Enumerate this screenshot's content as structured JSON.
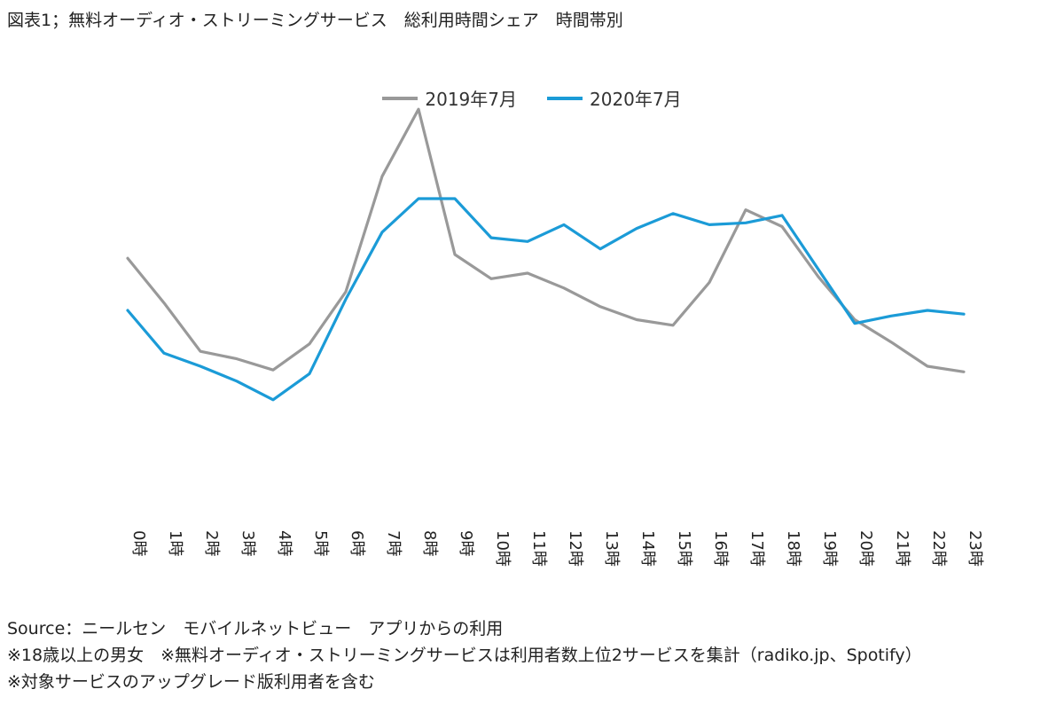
{
  "title": "図表1；無料オーディオ・ストリーミングサービス　総利用時間シェア　時間帯別",
  "chart_data": {
    "type": "line",
    "title": "図表1；無料オーディオ・ストリーミングサービス　総利用時間シェア　時間帯別",
    "xlabel": "",
    "ylabel": "",
    "legend_position": "top-center",
    "grid": false,
    "categories": [
      "0時",
      "1時",
      "2時",
      "3時",
      "4時",
      "5時",
      "6時",
      "7時",
      "8時",
      "9時",
      "10時",
      "11時",
      "12時",
      "13時",
      "14時",
      "15時",
      "16時",
      "17時",
      "18時",
      "19時",
      "20時",
      "21時",
      "22時",
      "23時"
    ],
    "ylim": [
      0,
      10
    ],
    "series": [
      {
        "name": "2019年7月",
        "color": "#999999",
        "values": [
          6.4,
          5.2,
          3.9,
          3.7,
          3.4,
          4.1,
          5.5,
          8.6,
          10.4,
          6.5,
          5.85,
          6.0,
          5.6,
          5.1,
          4.75,
          4.6,
          5.75,
          7.7,
          7.25,
          5.9,
          4.75,
          4.15,
          3.5,
          3.35
        ]
      },
      {
        "name": "2020年7月",
        "color": "#1b9bd7",
        "values": [
          5.0,
          3.85,
          3.5,
          3.1,
          2.6,
          3.3,
          5.3,
          7.1,
          8.0,
          8.0,
          6.95,
          6.85,
          7.3,
          6.65,
          7.2,
          7.6,
          7.3,
          7.35,
          7.55,
          6.1,
          4.65,
          4.85,
          5.0,
          4.9
        ]
      }
    ]
  },
  "notes": [
    "Source：ニールセン　モバイルネットビュー　アプリからの利用",
    "※18歳以上の男女　※無料オーディオ・ストリーミングサービスは利用者数上位2サービスを集計（radiko.jp、Spotify）",
    "※対象サービスのアップグレード版利用者を含む"
  ]
}
